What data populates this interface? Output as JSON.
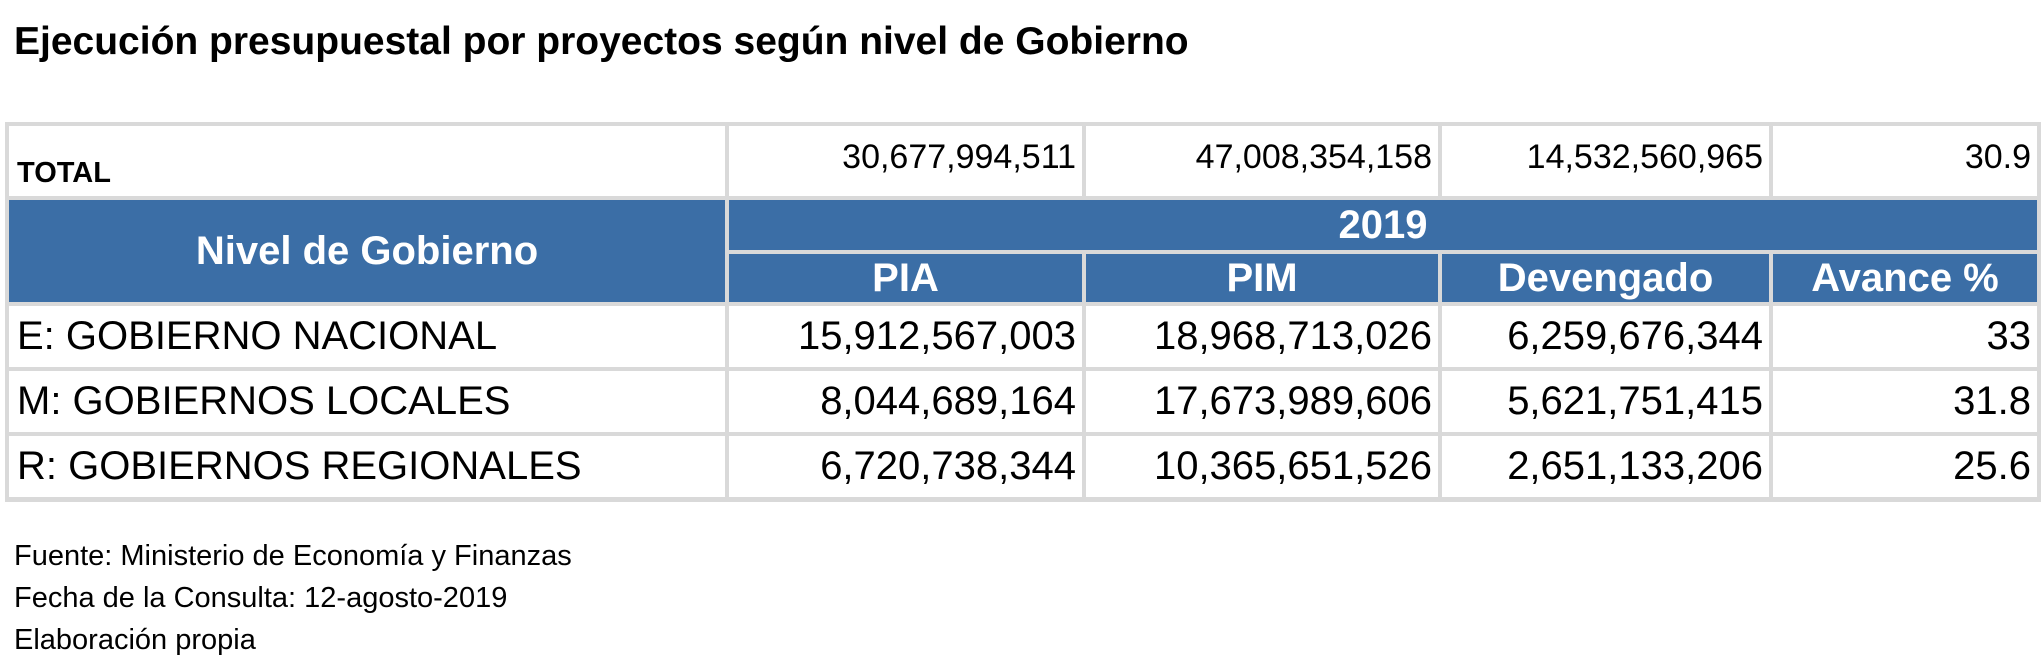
{
  "title": "Ejecución presupuestal por proyectos según nivel de Gobierno",
  "table": {
    "total": {
      "label": "TOTAL",
      "cells": [
        "30,677,994,511",
        "47,008,354,158",
        "14,532,560,965",
        "30.9"
      ]
    },
    "header": {
      "group": "Nivel de Gobierno",
      "year": "2019",
      "columns": [
        "PIA",
        "PIM",
        "Devengado",
        "Avance %"
      ]
    },
    "rows": [
      [
        "E: GOBIERNO NACIONAL",
        "15,912,567,003",
        "18,968,713,026",
        "6,259,676,344",
        "33"
      ],
      [
        "M: GOBIERNOS LOCALES",
        "8,044,689,164",
        "17,673,989,606",
        "5,621,751,415",
        "31.8"
      ],
      [
        "R: GOBIERNOS REGIONALES",
        "6,720,738,344",
        "10,365,651,526",
        "2,651,133,206",
        "25.6"
      ]
    ]
  },
  "footer": [
    "Fuente: Ministerio de Economía y Finanzas",
    "Fecha de la Consulta: 12-agosto-2019",
    "Elaboración propia"
  ]
}
